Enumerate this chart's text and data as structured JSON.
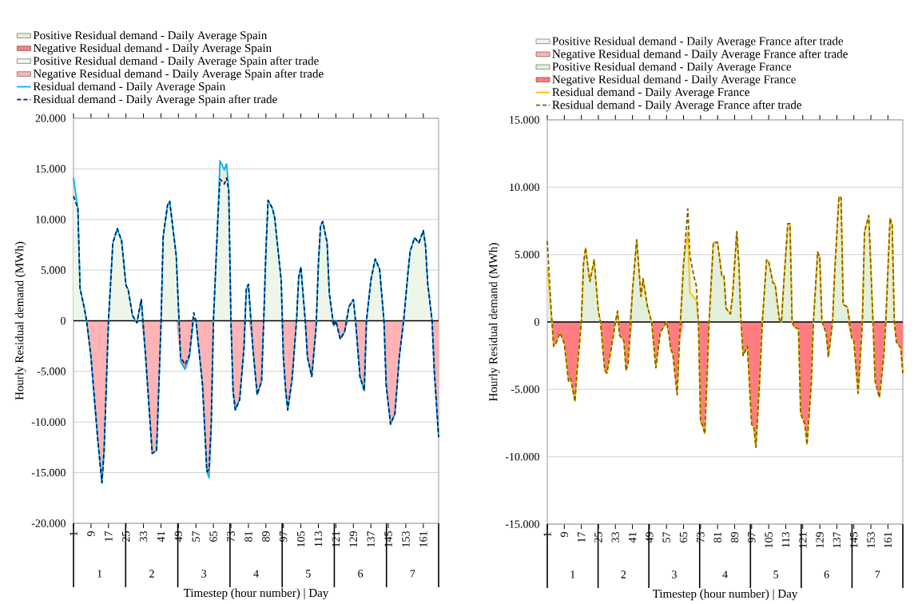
{
  "chart_data": [
    {
      "type": "line",
      "xlabel": "Timestep (hour number) | Day",
      "ylabel": "Hourly Residual demand (MWh)",
      "x": [
        1,
        3,
        4,
        6,
        7,
        9,
        12,
        14,
        15,
        17,
        19,
        21,
        23,
        25,
        26,
        28,
        30,
        32,
        34,
        37,
        39,
        41,
        42,
        44,
        45,
        48,
        50,
        52,
        54,
        56,
        57,
        60,
        62,
        63,
        64,
        65,
        67,
        68,
        70,
        71,
        72,
        73,
        74,
        75,
        77,
        79,
        80,
        81,
        83,
        85,
        87,
        88,
        89,
        90,
        92,
        93,
        96,
        97,
        98,
        99,
        101,
        103,
        104,
        105,
        107,
        108,
        110,
        112,
        113,
        114,
        115,
        117,
        118,
        120,
        121,
        123,
        125,
        127,
        129,
        130,
        132,
        134,
        135,
        137,
        139,
        141,
        143,
        144,
        146,
        148,
        150,
        152,
        154,
        155,
        157,
        159,
        161,
        162,
        163,
        165,
        166,
        168
      ],
      "series": [
        {
          "name": "Positive Residual demand - Daily Average Spain",
          "type": "area",
          "color": "#e2efda",
          "values": [
            14100,
            11100,
            null,
            null,
            null,
            null,
            null,
            null,
            null,
            null,
            null,
            null,
            null,
            null,
            null,
            null,
            null,
            null,
            null,
            null,
            null,
            null,
            null,
            null,
            null,
            null,
            null,
            null,
            null,
            null,
            null,
            null,
            null,
            null,
            null,
            null,
            10000,
            15800,
            14900,
            15500,
            12900,
            null,
            null,
            null,
            null,
            null,
            null,
            null,
            null,
            null,
            null,
            null,
            null,
            null,
            null,
            null,
            null,
            null,
            null,
            null,
            null,
            null,
            null,
            null,
            null,
            null,
            null,
            null,
            null,
            null,
            null,
            null,
            null,
            null,
            null,
            null,
            null,
            null,
            null,
            null,
            null,
            null,
            null,
            null,
            null,
            null,
            null,
            null,
            null,
            null,
            null,
            null,
            null,
            null,
            null,
            null,
            null,
            null,
            null,
            null,
            null,
            null
          ]
        },
        {
          "name": "Negative Residual demand - Daily Average Spain",
          "type": "area",
          "color": "#ff7c80",
          "values": [
            null,
            null,
            null,
            null,
            null,
            null,
            null,
            null,
            null,
            null,
            null,
            null,
            null,
            null,
            null,
            null,
            null,
            null,
            null,
            null,
            null,
            null,
            null,
            null,
            null,
            0,
            -4000,
            -4800,
            -3600,
            0,
            null,
            null,
            -14900,
            -15500,
            -10200,
            null,
            null,
            null,
            null,
            null,
            null,
            null,
            null,
            null,
            null,
            null,
            null,
            null,
            null,
            null,
            null,
            null,
            null,
            null,
            null,
            null,
            null,
            null,
            null,
            null,
            null,
            null,
            null,
            null,
            null,
            null,
            null,
            null,
            null,
            null,
            null,
            null,
            null,
            null,
            null,
            null,
            null,
            null,
            null,
            null,
            null,
            null,
            null,
            null,
            null,
            null,
            null,
            null,
            null,
            null,
            null,
            null,
            null,
            null,
            null,
            null,
            null,
            null,
            null,
            null,
            null,
            null
          ]
        },
        {
          "name": "Positive Residual demand - Daily Average Spain after trade",
          "type": "area",
          "color": "#eef6e9",
          "values": [
            12300,
            11100,
            3200,
            1200,
            0,
            0,
            0,
            0,
            0,
            0,
            7700,
            9100,
            7900,
            3500,
            3100,
            500,
            0,
            2100,
            0,
            0,
            0,
            0,
            8300,
            11400,
            11800,
            6400,
            0,
            0,
            0,
            800,
            0,
            0,
            0,
            0,
            0,
            0,
            10000,
            14000,
            13500,
            14100,
            12900,
            0,
            0,
            0,
            0,
            0,
            3100,
            3600,
            0,
            0,
            0,
            0,
            6900,
            11900,
            11100,
            10200,
            4000,
            0,
            0,
            0,
            0,
            0,
            4300,
            5300,
            0,
            0,
            0,
            0,
            5600,
            9400,
            9800,
            7700,
            2700,
            0,
            0,
            0,
            0,
            1400,
            2100,
            0,
            0,
            0,
            0,
            4000,
            6100,
            5100,
            0,
            0,
            0,
            0,
            0,
            0,
            4800,
            6900,
            8200,
            7700,
            8900,
            7400,
            3700,
            0,
            0,
            0
          ]
        },
        {
          "name": "Negative Residual demand - Daily Average Spain after trade",
          "type": "area",
          "color": "#ffb3b5",
          "values": [
            0,
            0,
            0,
            0,
            0,
            -3600,
            -11500,
            -16000,
            -12800,
            0,
            0,
            0,
            0,
            0,
            0,
            0,
            -200,
            0,
            -3600,
            -13100,
            -12800,
            -500,
            0,
            0,
            0,
            0,
            -3600,
            -4300,
            -3400,
            0,
            0,
            -6300,
            -14900,
            -14600,
            -10200,
            0,
            0,
            0,
            0,
            0,
            0,
            0,
            -7000,
            -8800,
            -7800,
            -2600,
            0,
            0,
            -2600,
            -7300,
            -6000,
            0,
            0,
            0,
            0,
            0,
            0,
            -3600,
            -6800,
            -8800,
            -5700,
            0,
            0,
            0,
            0,
            -3600,
            -5500,
            -500,
            0,
            0,
            0,
            0,
            0,
            -500,
            0,
            -1800,
            -1100,
            0,
            0,
            0,
            -5500,
            -6900,
            0,
            0,
            0,
            0,
            0,
            -6300,
            -10200,
            -9200,
            -3600,
            0,
            0,
            0,
            0,
            0,
            0,
            0,
            0,
            0,
            -4900,
            -11500
          ]
        },
        {
          "name": "Residual demand - Daily Average Spain",
          "color": "#00b0f0",
          "line_style": "solid",
          "values": [
            14100,
            11100,
            3200,
            1200,
            0,
            -3600,
            -11500,
            -16000,
            -12800,
            0,
            7700,
            9100,
            7900,
            3500,
            3100,
            500,
            -200,
            2100,
            -3600,
            -13100,
            -12800,
            -500,
            8300,
            11400,
            11800,
            6400,
            -4000,
            -4800,
            -3600,
            300,
            0,
            -6300,
            -14900,
            -15500,
            -10200,
            0,
            10000,
            15800,
            14900,
            15500,
            12900,
            0,
            -7000,
            -8800,
            -7800,
            -2600,
            3100,
            3600,
            -2600,
            -7300,
            -6000,
            0,
            6900,
            11900,
            11100,
            10200,
            4000,
            -3600,
            -6800,
            -8800,
            -5700,
            0,
            4300,
            5300,
            0,
            -3600,
            -5500,
            -500,
            5600,
            9400,
            9800,
            7700,
            2700,
            -500,
            0,
            -1800,
            -1100,
            1400,
            2100,
            0,
            -5500,
            -6900,
            0,
            4000,
            6100,
            5100,
            0,
            -6300,
            -10200,
            -9200,
            -3600,
            0,
            4800,
            6900,
            8200,
            7700,
            8900,
            7400,
            3700,
            0,
            -4900,
            -11500
          ]
        },
        {
          "name": "Residual demand - Daily Average Spain after trade",
          "color": "#002060",
          "line_style": "dashed",
          "values": [
            12300,
            11100,
            3200,
            1200,
            0,
            -3600,
            -11500,
            -16000,
            -12800,
            0,
            7700,
            9100,
            7900,
            3500,
            3100,
            500,
            -200,
            2100,
            -3600,
            -13100,
            -12800,
            -500,
            8300,
            11400,
            11800,
            6400,
            -3600,
            -4300,
            -3400,
            800,
            0,
            -6300,
            -14900,
            -14600,
            -10200,
            0,
            10000,
            14000,
            13500,
            14100,
            12900,
            0,
            -7000,
            -8800,
            -7800,
            -2600,
            3100,
            3600,
            -2600,
            -7300,
            -6000,
            0,
            6900,
            11900,
            11100,
            10200,
            4000,
            -3600,
            -6800,
            -8800,
            -5700,
            0,
            4300,
            5300,
            0,
            -3600,
            -5500,
            -500,
            5600,
            9400,
            9800,
            7700,
            2700,
            -500,
            0,
            -1800,
            -1100,
            1400,
            2100,
            0,
            -5500,
            -6900,
            0,
            4000,
            6100,
            5100,
            0,
            -6300,
            -10200,
            -9200,
            -3600,
            0,
            4800,
            6900,
            8200,
            7700,
            8900,
            7400,
            3700,
            0,
            -4900,
            -11500
          ]
        }
      ],
      "xlim": [
        1,
        168
      ],
      "xticks": [
        1,
        9,
        17,
        25,
        33,
        41,
        49,
        57,
        65,
        73,
        81,
        89,
        97,
        105,
        113,
        121,
        129,
        137,
        145,
        153,
        161
      ],
      "ylim": [
        -20000,
        20000
      ],
      "yticks": [
        {
          "value": -20000,
          "label": "-20.000"
        },
        {
          "value": -15000,
          "label": "-15.000"
        },
        {
          "value": -10000,
          "label": "-10.000"
        },
        {
          "value": -5000,
          "label": "-5.000"
        },
        0,
        {
          "value": 5000,
          "label": "5.000"
        },
        {
          "value": 10000,
          "label": "10.000"
        },
        {
          "value": 15000,
          "label": "15.000"
        },
        {
          "value": 20000,
          "label": "20.000"
        }
      ],
      "annotations": [
        "1",
        "2",
        "3",
        "4",
        "5",
        "6",
        "7"
      ],
      "grid": "y",
      "legend": "top"
    },
    {
      "type": "line",
      "xlabel": "Timestep (hour number) | Day",
      "ylabel": "Hourly Residual demand (MWh)",
      "x": [
        1,
        3,
        4,
        5,
        7,
        9,
        11,
        12,
        14,
        15,
        17,
        18,
        19,
        21,
        23,
        25,
        26,
        28,
        29,
        31,
        33,
        34,
        35,
        37,
        38,
        39,
        41,
        43,
        45,
        46,
        48,
        50,
        52,
        54,
        57,
        58,
        59,
        60,
        62,
        63,
        65,
        67,
        68,
        70,
        71,
        72,
        73,
        74,
        75,
        77,
        79,
        81,
        83,
        84,
        85,
        87,
        88,
        90,
        91,
        92,
        93,
        95,
        97,
        98,
        99,
        101,
        102,
        104,
        105,
        107,
        108,
        110,
        111,
        112,
        114,
        115,
        116,
        117,
        119,
        120,
        122,
        123,
        125,
        126,
        128,
        129,
        130,
        132,
        133,
        135,
        136,
        138,
        139,
        140,
        142,
        144,
        145,
        147,
        149,
        150,
        152,
        154,
        155,
        157,
        159,
        160,
        162,
        163,
        164,
        165,
        167,
        168
      ],
      "series": [
        {
          "name": "Positive Residual demand - Daily Average France after trade",
          "type": "area",
          "color": "#eef6e9",
          "values": [
            6000,
            400,
            null,
            null,
            null,
            null,
            null,
            null,
            null,
            null,
            null,
            null,
            null,
            null,
            null,
            null,
            null,
            null,
            null,
            null,
            null,
            null,
            null,
            null,
            null,
            null,
            null,
            null,
            null,
            null,
            null,
            null,
            null,
            null,
            null,
            null,
            null,
            null,
            null,
            null,
            4300,
            8400,
            4900,
            3300,
            2700,
            0,
            null,
            null,
            null,
            null,
            null,
            null,
            null,
            null,
            null,
            null,
            null,
            null,
            null,
            null,
            null,
            null,
            null,
            null,
            null,
            null,
            null,
            null,
            null,
            null,
            null,
            null,
            null,
            null,
            null,
            null,
            null,
            null,
            null,
            null,
            null,
            null,
            null,
            null,
            null,
            null,
            null,
            null,
            null,
            null,
            null,
            null,
            null,
            null,
            null,
            null,
            null,
            null,
            null,
            null,
            null,
            null,
            null,
            null,
            null,
            null,
            null,
            null,
            null,
            null,
            null,
            null
          ]
        },
        {
          "name": "Negative Residual demand - Daily Average France after trade",
          "type": "area",
          "color": "#ffb3b5",
          "values": [
            null,
            null,
            null,
            null,
            null,
            null,
            null,
            null,
            null,
            null,
            null,
            null,
            null,
            null,
            null,
            null,
            null,
            null,
            null,
            null,
            null,
            null,
            null,
            null,
            null,
            null,
            null,
            null,
            null,
            null,
            null,
            null,
            null,
            null,
            null,
            null,
            null,
            null,
            null,
            null,
            null,
            null,
            null,
            null,
            null,
            null,
            null,
            null,
            null,
            null,
            null,
            null,
            null,
            null,
            null,
            null,
            null,
            null,
            null,
            null,
            null,
            null,
            null,
            null,
            null,
            null,
            null,
            null,
            null,
            null,
            null,
            null,
            null,
            null,
            null,
            null,
            null,
            null,
            null,
            null,
            null,
            null,
            null,
            null,
            null,
            null,
            null,
            null,
            null,
            null,
            null,
            null,
            null,
            null,
            null,
            null,
            null,
            null,
            null,
            null,
            null,
            null,
            null,
            null,
            null,
            null,
            null,
            null,
            null,
            null,
            null,
            null
          ]
        },
        {
          "name": "Positive Residual demand - Daily Average France",
          "type": "area",
          "color": "#e2efda",
          "values": [
            4100,
            400,
            0,
            0,
            0,
            0,
            0,
            0,
            0,
            0,
            0,
            4300,
            5500,
            3000,
            4600,
            800,
            0,
            0,
            0,
            0,
            0,
            800,
            0,
            0,
            0,
            0,
            2300,
            6100,
            1900,
            3200,
            1200,
            0,
            0,
            0,
            0,
            0,
            0,
            0,
            0,
            0,
            4300,
            6700,
            2200,
            1800,
            1600,
            0,
            0,
            0,
            0,
            0,
            5900,
            5900,
            3400,
            3400,
            1000,
            600,
            1900,
            6700,
            4300,
            0,
            0,
            0,
            0,
            0,
            0,
            0,
            0,
            4600,
            4500,
            2900,
            2800,
            200,
            0,
            2700,
            7300,
            7300,
            0,
            0,
            0,
            0,
            0,
            0,
            0,
            0,
            5200,
            4800,
            0,
            0,
            0,
            0,
            3700,
            9300,
            9200,
            1300,
            1100,
            0,
            0,
            0,
            0,
            6700,
            7900,
            0,
            0,
            0,
            0,
            0,
            7700,
            7200,
            0,
            0,
            0,
            0
          ]
        },
        {
          "name": "Negative Residual demand - Daily Average France",
          "type": "area",
          "color": "#ff7c80",
          "values": [
            0,
            0,
            -1800,
            -1600,
            -800,
            -1600,
            -4400,
            -4200,
            -5900,
            -3600,
            0,
            0,
            0,
            0,
            0,
            0,
            0,
            -3600,
            -3800,
            -2000,
            0,
            0,
            -1000,
            -1400,
            -3600,
            -3000,
            0,
            0,
            0,
            0,
            0,
            0,
            -3400,
            -800,
            0,
            -800,
            -2000,
            -2400,
            -5400,
            -1600,
            0,
            0,
            0,
            0,
            0,
            0,
            -7400,
            -7700,
            -8300,
            0,
            0,
            0,
            0,
            0,
            0,
            0,
            0,
            0,
            0,
            0,
            -2500,
            -1800,
            -7600,
            -7800,
            -9300,
            -3600,
            0,
            0,
            0,
            0,
            0,
            0,
            0,
            0,
            0,
            0,
            0,
            -400,
            -500,
            -6800,
            -7600,
            -9100,
            -4600,
            0,
            0,
            0,
            0,
            -800,
            -2600,
            0,
            0,
            0,
            0,
            0,
            0,
            -1200,
            -1400,
            -5300,
            0,
            0,
            0,
            0,
            -4400,
            -5600,
            -2600,
            0,
            0,
            0,
            0,
            -1500,
            -1900,
            -3800
          ]
        },
        {
          "name": "Residual demand - Daily Average France",
          "color": "#ffc000",
          "line_style": "solid",
          "values": [
            4100,
            400,
            -1800,
            -1600,
            -800,
            -1600,
            -4400,
            -4200,
            -5900,
            -3600,
            0,
            4300,
            5500,
            3000,
            4600,
            800,
            0,
            -3600,
            -3800,
            -2000,
            0,
            800,
            -1000,
            -1400,
            -3600,
            -3000,
            2300,
            6100,
            1900,
            3200,
            1200,
            0,
            -3400,
            -800,
            0,
            -800,
            -2000,
            -2400,
            -5400,
            -1600,
            4300,
            6700,
            2200,
            1800,
            1600,
            0,
            -7400,
            -7700,
            -8300,
            0,
            5900,
            5900,
            3400,
            3400,
            1000,
            600,
            1900,
            6700,
            4300,
            0,
            -2500,
            -1800,
            -7600,
            -7800,
            -9300,
            -3600,
            0,
            4600,
            4500,
            2900,
            2800,
            200,
            0,
            2700,
            7300,
            7300,
            0,
            -400,
            -500,
            -6800,
            -7600,
            -9100,
            -4600,
            0,
            5200,
            4800,
            0,
            -800,
            -2600,
            0,
            3700,
            9300,
            9200,
            1300,
            1100,
            -1200,
            -1400,
            -5300,
            0,
            6700,
            7900,
            0,
            -4400,
            -5600,
            -2600,
            0,
            7700,
            7200,
            0,
            -1500,
            -1900,
            -3800
          ]
        },
        {
          "name": "Residual demand - Daily Average France after trade",
          "color": "#7f6000",
          "line_style": "dashed",
          "values": [
            6000,
            400,
            -1800,
            -1600,
            -800,
            -1600,
            -4400,
            -4200,
            -5900,
            -3600,
            0,
            4300,
            5500,
            3000,
            4600,
            800,
            0,
            -3600,
            -3800,
            -2000,
            0,
            800,
            -1000,
            -1400,
            -3600,
            -3000,
            2300,
            6100,
            1900,
            3200,
            1200,
            0,
            -3400,
            -800,
            0,
            -800,
            -2000,
            -2400,
            -5400,
            -1600,
            4300,
            8400,
            4900,
            3300,
            2700,
            0,
            -7400,
            -7700,
            -8300,
            0,
            5900,
            5900,
            3400,
            3400,
            1000,
            600,
            1900,
            6700,
            4300,
            0,
            -2500,
            -1800,
            -7600,
            -7800,
            -9300,
            -3600,
            0,
            4600,
            4500,
            2900,
            2800,
            200,
            0,
            2700,
            7300,
            7300,
            0,
            -400,
            -500,
            -6800,
            -7600,
            -9100,
            -4600,
            0,
            5200,
            4800,
            0,
            -800,
            -2600,
            0,
            3700,
            9300,
            9200,
            1300,
            1100,
            -1200,
            -1400,
            -5300,
            0,
            6700,
            7900,
            0,
            -4400,
            -5600,
            -2600,
            0,
            7700,
            7200,
            0,
            -1500,
            -1900,
            -3800
          ]
        }
      ],
      "xlim": [
        1,
        168
      ],
      "xticks": [
        1,
        9,
        17,
        25,
        33,
        41,
        49,
        57,
        65,
        73,
        81,
        89,
        97,
        105,
        113,
        121,
        129,
        137,
        145,
        153,
        161
      ],
      "ylim": [
        -15000,
        15000
      ],
      "yticks": [
        {
          "value": -15000,
          "label": "-15.000"
        },
        {
          "value": -10000,
          "label": "-10.000"
        },
        {
          "value": -5000,
          "label": "-5.000"
        },
        0,
        {
          "value": 5000,
          "label": "5.000"
        },
        {
          "value": 10000,
          "label": "10.000"
        },
        {
          "value": 15000,
          "label": "15.000"
        }
      ],
      "annotations": [
        "1",
        "2",
        "3",
        "4",
        "5",
        "6",
        "7"
      ],
      "grid": "y",
      "legend": "top"
    }
  ]
}
